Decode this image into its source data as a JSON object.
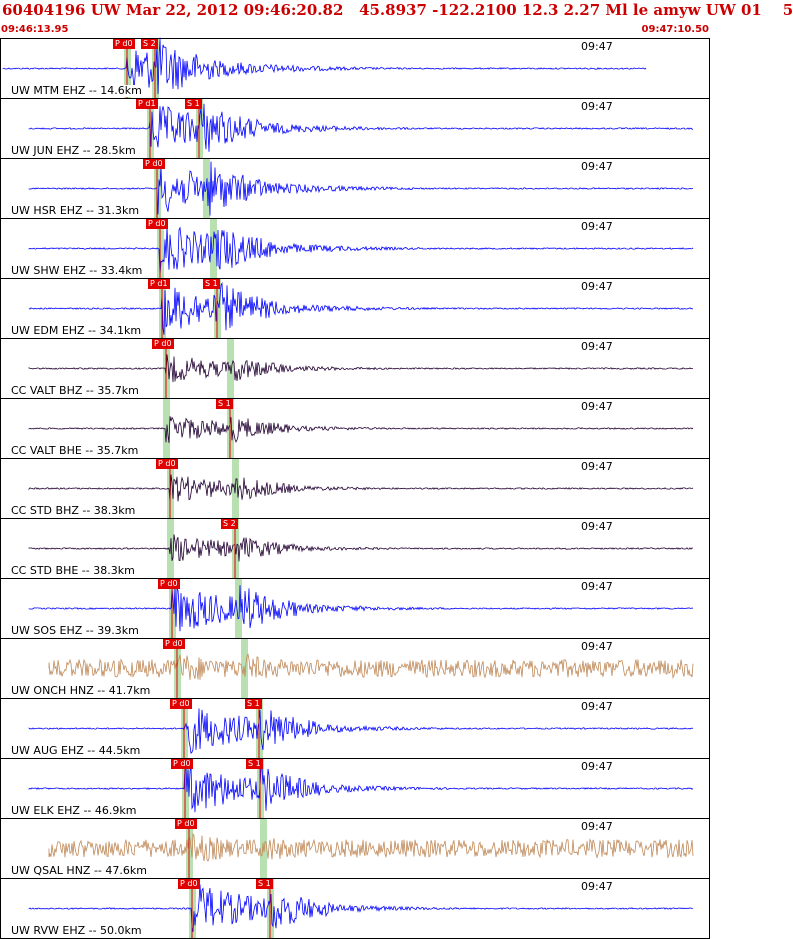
{
  "header": {
    "title": "60404196 UW Mar 22, 2012 09:46:20.82   45.8937 -122.2100 12.3 2.27 Ml le amyw UW 01    5",
    "start_time": "09:46:13.95",
    "end_time": "09:47:10.50"
  },
  "colors": {
    "title": "#cc0000",
    "ehz_trace": "#0000ff",
    "broadband_trace": "#220033",
    "strong_motion_trace": "#c08a5a",
    "pick_tag": "#e00000",
    "pick_window": "#b8e0b0"
  },
  "chart_data": {
    "type": "line",
    "title": "60404196 UW Mar 22, 2012 09:46:20.82   45.8937 -122.2100 12.3 2.27 Ml le amyw UW 01    5",
    "x_range": [
      "09:46:13.95",
      "09:47:10.50"
    ],
    "minute_mark": "09:47",
    "series": [
      {
        "name": "UW MTM EHZ -- 14.6km",
        "label": "UW MTM EHZ -- 14.6km",
        "trace": "ehz",
        "p_pick": "P d0",
        "s_pick": "S 2",
        "p_frac": 0.178,
        "s_frac": 0.218
      },
      {
        "name": "UW JUN EHZ -- 28.5km",
        "label": "UW JUN EHZ -- 28.5km",
        "trace": "ehz",
        "p_pick": "P d1",
        "s_pick": "S 1",
        "p_frac": 0.21,
        "s_frac": 0.28
      },
      {
        "name": "UW HSR EHZ -- 31.3km",
        "label": "UW HSR EHZ -- 31.3km",
        "trace": "ehz",
        "p_pick": "P d0",
        "s_pick": "",
        "p_frac": 0.22,
        "s_frac": 0.29
      },
      {
        "name": "UW SHW EHZ -- 33.4km",
        "label": "UW SHW EHZ -- 33.4km",
        "trace": "ehz",
        "p_pick": "P d0",
        "s_pick": "",
        "p_frac": 0.225,
        "s_frac": 0.3
      },
      {
        "name": "UW EDM EHZ -- 34.1km",
        "label": "UW EDM EHZ -- 34.1km",
        "trace": "ehz",
        "p_pick": "P d1",
        "s_pick": "S 1",
        "p_frac": 0.228,
        "s_frac": 0.305
      },
      {
        "name": "CC VALT BHZ -- 35.7km",
        "label": "CC VALT BHZ -- 35.7km",
        "trace": "bb",
        "p_pick": "P d0",
        "s_pick": "",
        "p_frac": 0.233,
        "s_frac": 0.323
      },
      {
        "name": "CC VALT BHE -- 35.7km",
        "label": "CC VALT BHE -- 35.7km",
        "trace": "bb",
        "p_pick": "",
        "s_pick": "S 1",
        "p_frac": 0.233,
        "s_frac": 0.323
      },
      {
        "name": "CC STD BHZ -- 38.3km",
        "label": "CC STD BHZ -- 38.3km",
        "trace": "bb",
        "p_pick": "P d0",
        "s_pick": "",
        "p_frac": 0.238,
        "s_frac": 0.33
      },
      {
        "name": "CC STD BHE -- 38.3km",
        "label": "CC STD BHE -- 38.3km",
        "trace": "bb",
        "p_pick": "",
        "s_pick": "S 2",
        "p_frac": 0.238,
        "s_frac": 0.33
      },
      {
        "name": "UW SOS EHZ -- 39.3km",
        "label": "UW SOS EHZ -- 39.3km",
        "trace": "ehz",
        "p_pick": "P d0",
        "s_pick": "",
        "p_frac": 0.242,
        "s_frac": 0.335
      },
      {
        "name": "UW ONCH HNZ -- 41.7km",
        "label": "UW ONCH HNZ -- 41.7km",
        "trace": "hnz",
        "p_pick": "P d0",
        "s_pick": "",
        "p_frac": 0.248,
        "s_frac": 0.343
      },
      {
        "name": "UW AUG EHZ -- 44.5km",
        "label": "UW AUG EHZ -- 44.5km",
        "trace": "ehz",
        "p_pick": "P d0",
        "s_pick": "S 1",
        "p_frac": 0.258,
        "s_frac": 0.365
      },
      {
        "name": "UW ELK EHZ -- 46.9km",
        "label": "UW ELK EHZ -- 46.9km",
        "trace": "ehz",
        "p_pick": "P d0",
        "s_pick": "S 1",
        "p_frac": 0.26,
        "s_frac": 0.366
      },
      {
        "name": "UW QSAL HNZ -- 47.6km",
        "label": "UW QSAL HNZ -- 47.6km",
        "trace": "hnz",
        "p_pick": "P d0",
        "s_pick": "",
        "p_frac": 0.265,
        "s_frac": 0.37
      },
      {
        "name": "UW RVW EHZ -- 50.0km",
        "label": "UW RVW EHZ -- 50.0km",
        "trace": "ehz",
        "p_pick": "P d0",
        "s_pick": "S 1",
        "p_frac": 0.27,
        "s_frac": 0.38
      }
    ]
  }
}
